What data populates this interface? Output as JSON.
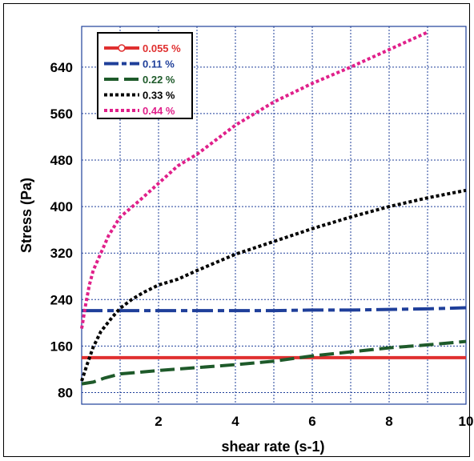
{
  "chart_data": {
    "type": "line",
    "title": "",
    "xlabel": "shear rate (s-1)",
    "ylabel": "Stress (Pa)",
    "xlim": [
      0,
      10
    ],
    "ylim": [
      60,
      710
    ],
    "xticks": [
      2,
      4,
      6,
      8,
      10
    ],
    "yticks": [
      80,
      160,
      240,
      320,
      400,
      480,
      560,
      640
    ],
    "grid": true,
    "legend_position": "top-left",
    "series": [
      {
        "name": "0.055 %",
        "color": "#e03030",
        "style": "solid",
        "x": [
          0,
          10
        ],
        "y": [
          140,
          140
        ]
      },
      {
        "name": "0.11 %",
        "color": "#1f3f9a",
        "style": "dashdot",
        "x": [
          0,
          1,
          2,
          3,
          4,
          5,
          6,
          7,
          8,
          9,
          10
        ],
        "y": [
          221,
          221,
          221,
          221,
          221,
          221,
          222,
          222,
          223,
          224,
          226
        ]
      },
      {
        "name": "0.22 %",
        "color": "#1e5a2a",
        "style": "dashed",
        "x": [
          0,
          0.3,
          0.6,
          1,
          1.5,
          2,
          3,
          4,
          5,
          6,
          7,
          8,
          9,
          10
        ],
        "y": [
          95,
          98,
          105,
          112,
          115,
          118,
          123,
          128,
          134,
          143,
          150,
          157,
          162,
          168
        ]
      },
      {
        "name": "0.33 %",
        "color": "#000000",
        "style": "dotted",
        "x": [
          0,
          0.15,
          0.3,
          0.5,
          0.8,
          1,
          1.3,
          1.6,
          2,
          2.5,
          3,
          4,
          5,
          6,
          7,
          8,
          9,
          10
        ],
        "y": [
          100,
          130,
          158,
          185,
          210,
          225,
          240,
          252,
          265,
          275,
          290,
          318,
          340,
          362,
          382,
          400,
          415,
          428
        ]
      },
      {
        "name": "0.44 %",
        "color": "#e0208a",
        "style": "dotted",
        "x": [
          0,
          0.1,
          0.2,
          0.3,
          0.5,
          0.7,
          1,
          1.5,
          2,
          2.5,
          3,
          3.5,
          4,
          5,
          6,
          7,
          8,
          9
        ],
        "y": [
          190,
          230,
          265,
          290,
          320,
          350,
          382,
          410,
          440,
          470,
          490,
          515,
          540,
          580,
          612,
          640,
          670,
          700
        ]
      }
    ]
  }
}
